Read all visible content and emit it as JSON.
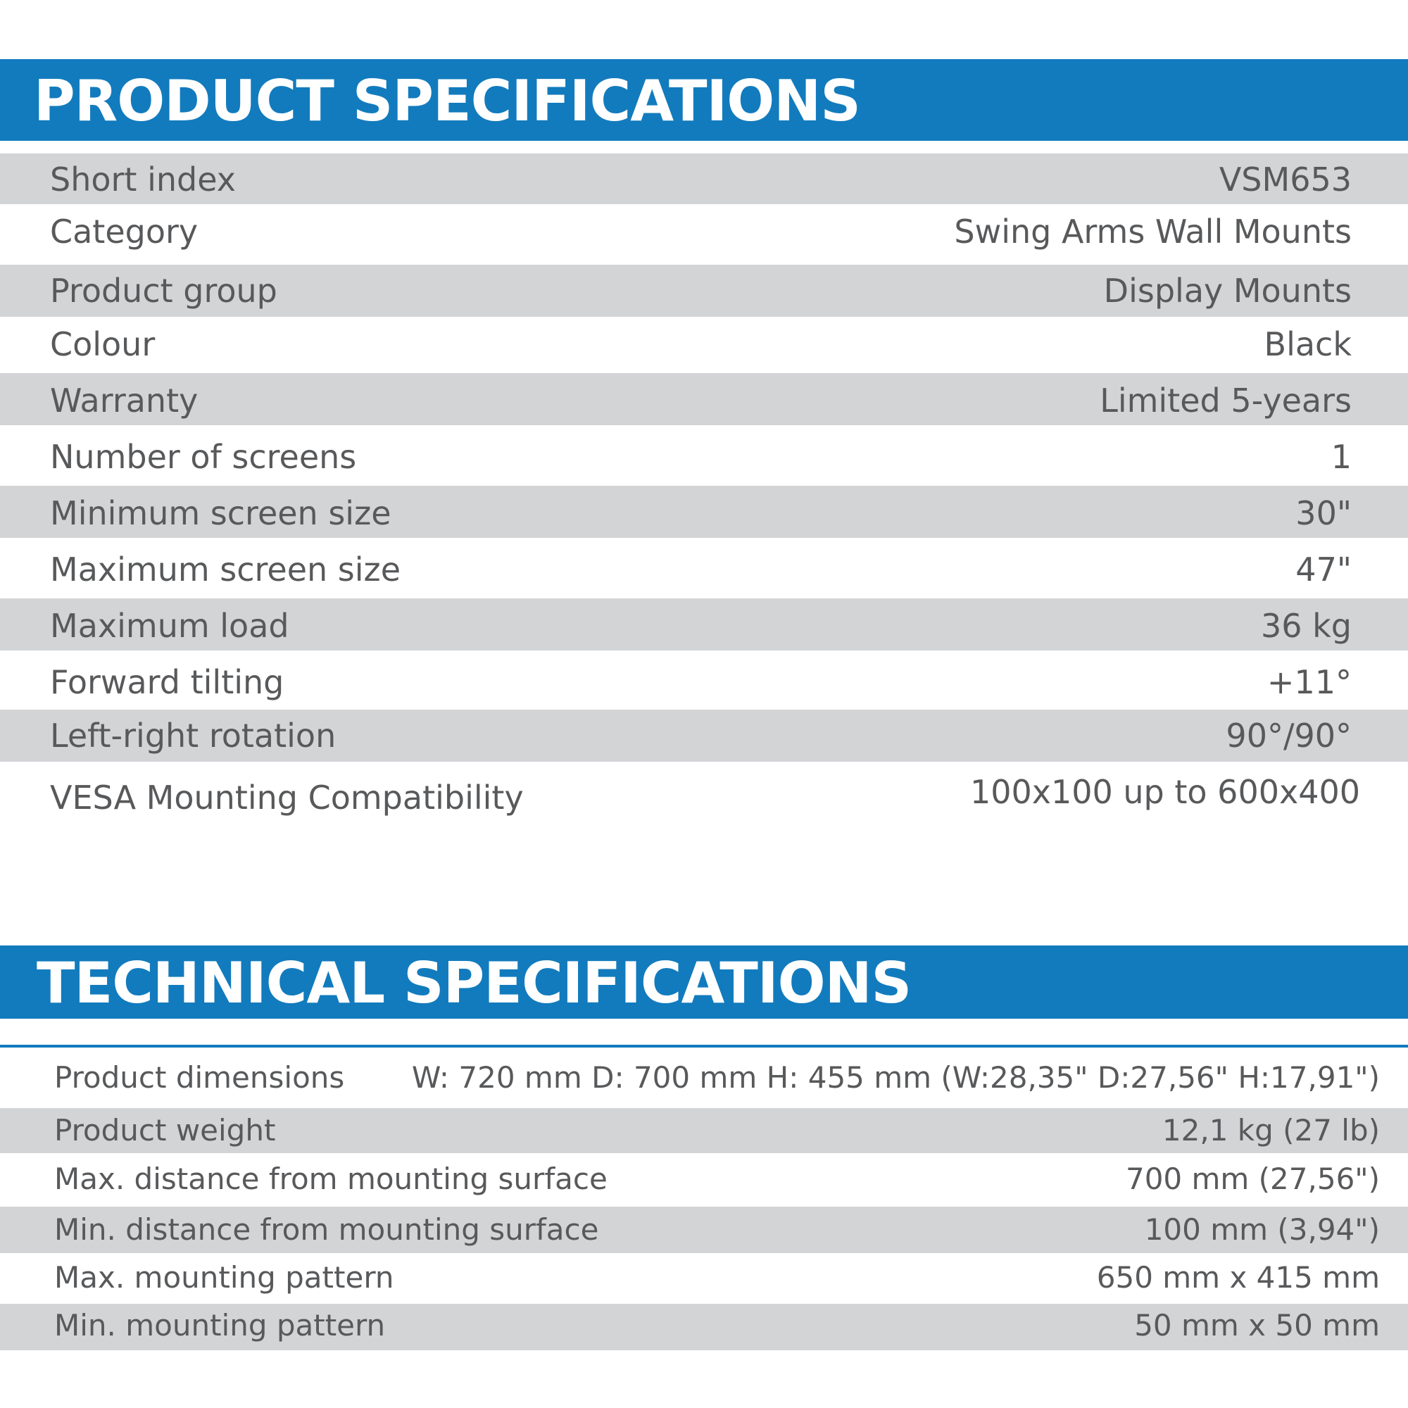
{
  "product": {
    "heading": "PRODUCT SPECIFICATIONS",
    "rows": [
      {
        "label": "Short index",
        "value": "VSM653"
      },
      {
        "label": "Category",
        "value": "Swing Arms Wall Mounts"
      },
      {
        "label": "Product group",
        "value": "Display Mounts"
      },
      {
        "label": "Colour",
        "value": "Black"
      },
      {
        "label": "Warranty",
        "value": "Limited 5-years"
      },
      {
        "label": "Number of screens",
        "value": "1"
      },
      {
        "label": "Minimum screen size",
        "value": "30\""
      },
      {
        "label": "Maximum screen size",
        "value": "47\""
      },
      {
        "label": "Maximum load",
        "value": "36 kg"
      },
      {
        "label": "Forward tilting",
        "value": "+11°"
      },
      {
        "label": "Left-right rotation",
        "value": "90°/90°"
      },
      {
        "label": "VESA Mounting Compatibility",
        "value": "100x100 up to 600x400"
      }
    ]
  },
  "technical": {
    "heading": "TECHNICAL SPECIFICATIONS",
    "rows": [
      {
        "label": "Product dimensions",
        "value": "W: 720 mm D: 700 mm H: 455 mm (W:28,35\" D:27,56\" H:17,91\")"
      },
      {
        "label": "Product weight",
        "value": "12,1 kg (27 lb)"
      },
      {
        "label": "Max. distance from mounting surface",
        "value": "700 mm (27,56\")"
      },
      {
        "label": "Min. distance from mounting surface",
        "value": "100 mm (3,94\")"
      },
      {
        "label": "Max. mounting pattern",
        "value": "650 mm x 415 mm"
      },
      {
        "label": "Min. mounting pattern",
        "value": "50 mm x 50 mm"
      }
    ]
  },
  "colors": {
    "accent": "#127bbd",
    "row_shade": "#d3d4d6",
    "text": "#58595b"
  }
}
